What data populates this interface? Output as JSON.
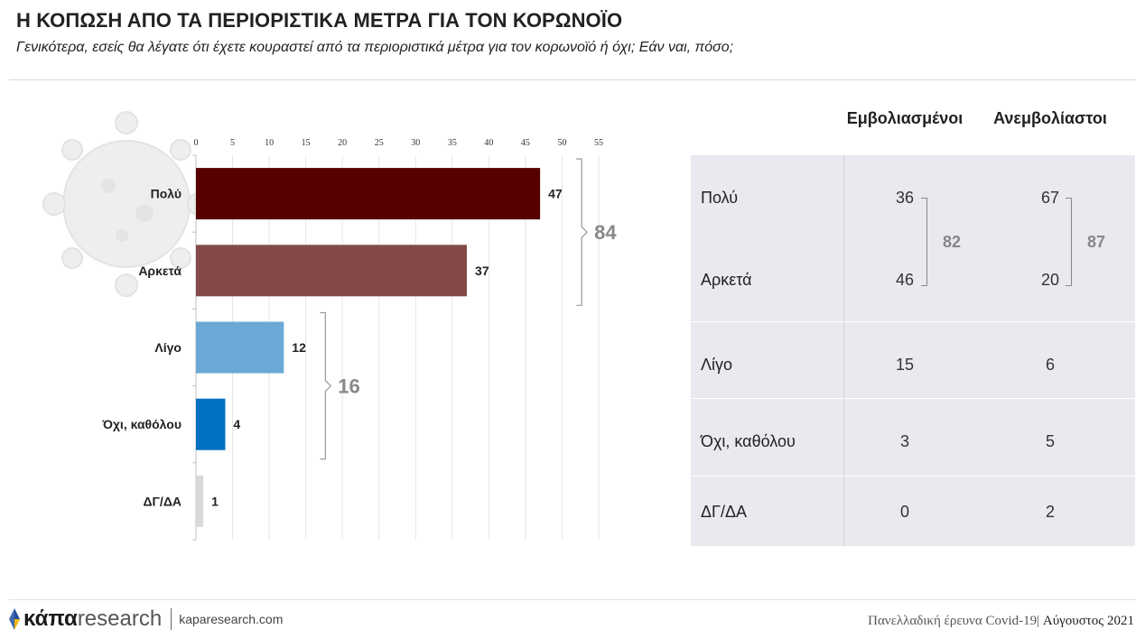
{
  "header": {
    "title": "Η ΚΟΠΩΣΗ ΑΠΟ ΤΑ ΠΕΡΙΟΡΙΣΤΙΚΑ ΜΕΤΡΑ ΓΙΑ ΤΟΝ ΚΟΡΩΝΟΪΟ",
    "subtitle": "Γενικότερα, εσείς θα λέγατε ότι έχετε κουραστεί από τα περιοριστικά μέτρα για τον κορωνοϊό ή όχι; Εάν ναι, πόσο;"
  },
  "chart_data": {
    "type": "bar",
    "orientation": "horizontal",
    "categories": [
      "Πολύ",
      "Αρκετά",
      "Λίγο",
      "Όχι, καθόλου",
      "ΔΓ/ΔΑ"
    ],
    "values": [
      47,
      37,
      12,
      4,
      1
    ],
    "data_labels": [
      "47",
      "37",
      "12",
      "4",
      "1"
    ],
    "colors": [
      "#560000",
      "#834848",
      "#6aa8d6",
      "#0070c0",
      "#d9d9d9"
    ],
    "xlim": [
      0,
      55
    ],
    "xticks": [
      0,
      5,
      10,
      15,
      20,
      25,
      30,
      35,
      40,
      45,
      50,
      55
    ],
    "grid": true,
    "groups": [
      {
        "members": [
          0,
          1
        ],
        "total": "84"
      },
      {
        "members": [
          2,
          3
        ],
        "total": "16"
      }
    ]
  },
  "table": {
    "columns": [
      "Εμβολιασμένοι",
      "Ανεμβολίαστοι"
    ],
    "rows": [
      {
        "label": "Πολύ",
        "values": [
          "36",
          "67"
        ]
      },
      {
        "label": "Αρκετά",
        "values": [
          "46",
          "20"
        ]
      },
      {
        "label": "Λίγο",
        "values": [
          "15",
          "6"
        ]
      },
      {
        "label": "Όχι, καθόλου",
        "values": [
          "3",
          "5"
        ]
      },
      {
        "label": "ΔΓ/ΔΑ",
        "values": [
          "0",
          "2"
        ]
      }
    ],
    "bracket_totals": [
      "82",
      "87"
    ]
  },
  "footer": {
    "logo_bold": "κάπα",
    "logo_light": "research",
    "website": "kaparesearch.com",
    "survey": "Πανελλαδική έρευνα Covid-19|",
    "date": "Αύγουστος 2021"
  },
  "theme": {
    "accent_dark": "#560000",
    "accent_blue": "#0070c0",
    "logo_blue": "#1f4e9c",
    "logo_yellow": "#f2b705"
  }
}
